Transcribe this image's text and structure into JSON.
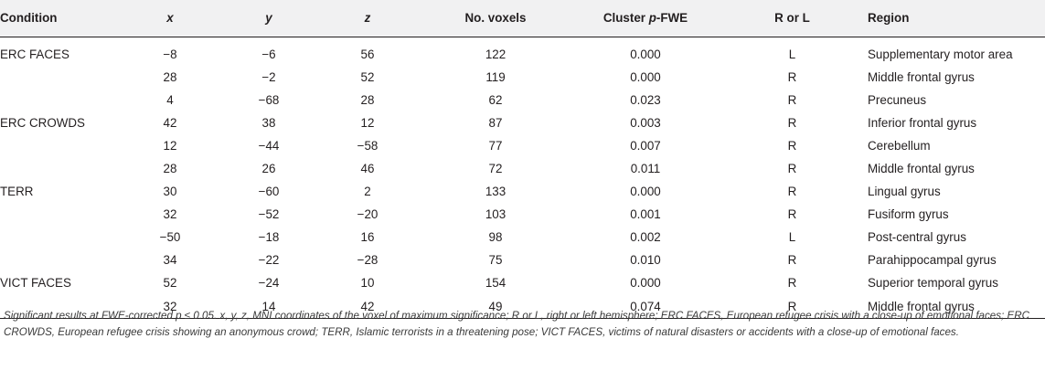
{
  "table": {
    "headers": [
      "Condition",
      "x",
      "y",
      "z",
      "No. voxels",
      "Cluster p-FWE",
      "R or L",
      "Region"
    ],
    "header_cluster": {
      "prefix": "Cluster ",
      "italic": "p",
      "suffix": "-FWE"
    },
    "rows": [
      [
        "ERC FACES",
        "−8",
        "−6",
        "56",
        "122",
        "0.000",
        "L",
        "Supplementary motor area"
      ],
      [
        "",
        "28",
        "−2",
        "52",
        "119",
        "0.000",
        "R",
        "Middle frontal gyrus"
      ],
      [
        "",
        "4",
        "−68",
        "28",
        "62",
        "0.023",
        "R",
        "Precuneus"
      ],
      [
        "ERC CROWDS",
        "42",
        "38",
        "12",
        "87",
        "0.003",
        "R",
        "Inferior frontal gyrus"
      ],
      [
        "",
        "12",
        "−44",
        "−58",
        "77",
        "0.007",
        "R",
        "Cerebellum"
      ],
      [
        "",
        "28",
        "26",
        "46",
        "72",
        "0.011",
        "R",
        "Middle frontal gyrus"
      ],
      [
        "TERR",
        "30",
        "−60",
        "2",
        "133",
        "0.000",
        "R",
        "Lingual gyrus"
      ],
      [
        "",
        "32",
        "−52",
        "−20",
        "103",
        "0.001",
        "R",
        "Fusiform gyrus"
      ],
      [
        "",
        "−50",
        "−18",
        "16",
        "98",
        "0.002",
        "L",
        "Post-central gyrus"
      ],
      [
        "",
        "34",
        "−22",
        "−28",
        "75",
        "0.010",
        "R",
        "Parahippocampal gyrus"
      ],
      [
        "VICT FACES",
        "52",
        "−24",
        "10",
        "154",
        "0.000",
        "R",
        "Superior temporal gyrus"
      ],
      [
        "",
        "32",
        "14",
        "42",
        "49",
        "0.074",
        "R",
        "Middle frontal gyrus"
      ]
    ]
  },
  "footnote": "Significant results at FWE-corrected p ≤ 0.05. x, y, z, MNI coordinates of the voxel of maximum significance; R or L, right or left hemisphere; ERC FACES, European refugee crisis with a close-up of emotional faces; ERC CROWDS, European refugee crisis showing an anonymous crowd; TERR, Islamic terrorists in a threatening pose; VICT FACES, victims of natural disasters or accidents with a close-up of emotional faces."
}
